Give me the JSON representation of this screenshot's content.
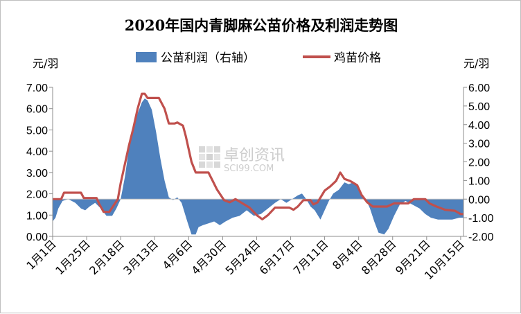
{
  "chart_data": {
    "type": "combo-area-line",
    "title": "2020年国内青脚麻公苗价格及利润走势图",
    "left_unit": "元/羽",
    "right_unit": "元/羽",
    "left_axis": {
      "min": 0,
      "max": 7,
      "step": 1,
      "tick_labels": [
        "0.00",
        "1.00",
        "2.00",
        "3.00",
        "4.00",
        "5.00",
        "6.00",
        "7.00"
      ]
    },
    "right_axis": {
      "min": -2,
      "max": 6,
      "step": 1,
      "tick_labels": [
        "-2.00",
        "-1.00",
        "0.00",
        "1.00",
        "2.00",
        "3.00",
        "4.00",
        "5.00",
        "6.00"
      ]
    },
    "x_axis": {
      "start_date": "2020-01-01",
      "end_date": "2020-10-17",
      "tick_dates": [
        "2020-01-01",
        "2020-01-25",
        "2020-02-18",
        "2020-03-13",
        "2020-04-06",
        "2020-04-30",
        "2020-05-24",
        "2020-06-17",
        "2020-07-11",
        "2020-08-04",
        "2020-08-28",
        "2020-09-21",
        "2020-10-15"
      ],
      "tick_labels": [
        "1月1日",
        "1月25日",
        "2月18日",
        "3月13日",
        "4月6日",
        "4月30日",
        "5月24日",
        "6月17日",
        "7月11日",
        "8月4日",
        "8月28日",
        "9月21日",
        "10月15日"
      ]
    },
    "legend": {
      "position": "top"
    },
    "series": [
      {
        "name": "公苗利润（右轴）",
        "type": "area",
        "axis": "right",
        "color": "#4f81bd",
        "points": [
          [
            "2020-01-01",
            -1.2
          ],
          [
            "2020-01-03",
            -1.0
          ],
          [
            "2020-01-05",
            -0.5
          ],
          [
            "2020-01-08",
            -0.1
          ],
          [
            "2020-01-12",
            0.0
          ],
          [
            "2020-01-17",
            -0.2
          ],
          [
            "2020-01-21",
            -0.5
          ],
          [
            "2020-01-24",
            -0.6
          ],
          [
            "2020-01-27",
            -0.4
          ],
          [
            "2020-01-31",
            -0.2
          ],
          [
            "2020-02-04",
            -0.5
          ],
          [
            "2020-02-08",
            -0.9
          ],
          [
            "2020-02-12",
            -0.9
          ],
          [
            "2020-02-15",
            -0.5
          ],
          [
            "2020-02-18",
            0.0
          ],
          [
            "2020-02-21",
            1.2
          ],
          [
            "2020-02-24",
            2.8
          ],
          [
            "2020-02-27",
            3.8
          ],
          [
            "2020-03-01",
            4.6
          ],
          [
            "2020-03-04",
            5.2
          ],
          [
            "2020-03-06",
            5.4
          ],
          [
            "2020-03-08",
            5.3
          ],
          [
            "2020-03-11",
            4.8
          ],
          [
            "2020-03-14",
            3.6
          ],
          [
            "2020-03-17",
            2.2
          ],
          [
            "2020-03-20",
            1.0
          ],
          [
            "2020-03-23",
            0.1
          ],
          [
            "2020-03-26",
            -0.05
          ],
          [
            "2020-03-29",
            0.1
          ],
          [
            "2020-04-01",
            -0.2
          ],
          [
            "2020-04-05",
            -1.2
          ],
          [
            "2020-04-08",
            -1.9
          ],
          [
            "2020-04-11",
            -1.9
          ],
          [
            "2020-04-13",
            -1.5
          ],
          [
            "2020-04-16",
            -1.4
          ],
          [
            "2020-04-20",
            -1.3
          ],
          [
            "2020-04-24",
            -1.2
          ],
          [
            "2020-04-28",
            -1.4
          ],
          [
            "2020-05-02",
            -1.2
          ],
          [
            "2020-05-07",
            -1.0
          ],
          [
            "2020-05-12",
            -0.9
          ],
          [
            "2020-05-17",
            -0.6
          ],
          [
            "2020-05-22",
            -0.9
          ],
          [
            "2020-05-27",
            -0.8
          ],
          [
            "2020-06-01",
            -0.5
          ],
          [
            "2020-06-06",
            -0.2
          ],
          [
            "2020-06-10",
            0.0
          ],
          [
            "2020-06-14",
            -0.2
          ],
          [
            "2020-06-18",
            0.0
          ],
          [
            "2020-06-22",
            0.2
          ],
          [
            "2020-06-25",
            0.3
          ],
          [
            "2020-06-28",
            0.0
          ],
          [
            "2020-07-01",
            -0.4
          ],
          [
            "2020-07-04",
            -0.6
          ],
          [
            "2020-07-08",
            -1.1
          ],
          [
            "2020-07-11",
            -0.6
          ],
          [
            "2020-07-14",
            -0.1
          ],
          [
            "2020-07-17",
            0.3
          ],
          [
            "2020-07-21",
            0.5
          ],
          [
            "2020-07-25",
            0.9
          ],
          [
            "2020-07-28",
            0.8
          ],
          [
            "2020-07-31",
            0.9
          ],
          [
            "2020-08-03",
            0.7
          ],
          [
            "2020-08-06",
            0.3
          ],
          [
            "2020-08-09",
            0.0
          ],
          [
            "2020-08-12",
            -0.5
          ],
          [
            "2020-08-15",
            -1.2
          ],
          [
            "2020-08-18",
            -1.8
          ],
          [
            "2020-08-22",
            -1.9
          ],
          [
            "2020-08-25",
            -1.6
          ],
          [
            "2020-08-29",
            -0.9
          ],
          [
            "2020-09-02",
            -0.3
          ],
          [
            "2020-09-06",
            -0.1
          ],
          [
            "2020-09-11",
            -0.3
          ],
          [
            "2020-09-16",
            -0.5
          ],
          [
            "2020-09-20",
            -0.8
          ],
          [
            "2020-09-24",
            -1.0
          ],
          [
            "2020-09-29",
            -1.1
          ],
          [
            "2020-10-04",
            -1.1
          ],
          [
            "2020-10-09",
            -1.1
          ],
          [
            "2020-10-14",
            -1.0
          ],
          [
            "2020-10-17",
            -1.0
          ]
        ]
      },
      {
        "name": "鸡苗价格",
        "type": "line",
        "axis": "left",
        "color": "#c0504d",
        "points": [
          [
            "2020-01-01",
            1.75
          ],
          [
            "2020-01-07",
            1.75
          ],
          [
            "2020-01-09",
            2.05
          ],
          [
            "2020-01-21",
            2.05
          ],
          [
            "2020-01-23",
            1.8
          ],
          [
            "2020-02-01",
            1.8
          ],
          [
            "2020-02-03",
            1.5
          ],
          [
            "2020-02-06",
            1.15
          ],
          [
            "2020-02-10",
            1.15
          ],
          [
            "2020-02-13",
            1.45
          ],
          [
            "2020-02-16",
            1.75
          ],
          [
            "2020-02-18",
            2.5
          ],
          [
            "2020-02-21",
            3.4
          ],
          [
            "2020-02-24",
            4.3
          ],
          [
            "2020-02-27",
            5.1
          ],
          [
            "2020-03-01",
            6.0
          ],
          [
            "2020-03-04",
            6.7
          ],
          [
            "2020-03-06",
            6.7
          ],
          [
            "2020-03-08",
            6.5
          ],
          [
            "2020-03-10",
            6.5
          ],
          [
            "2020-03-13",
            6.5
          ],
          [
            "2020-03-16",
            6.5
          ],
          [
            "2020-03-20",
            6.0
          ],
          [
            "2020-03-23",
            5.3
          ],
          [
            "2020-03-27",
            5.3
          ],
          [
            "2020-03-29",
            5.35
          ],
          [
            "2020-04-02",
            5.2
          ],
          [
            "2020-04-04",
            4.7
          ],
          [
            "2020-04-08",
            3.5
          ],
          [
            "2020-04-11",
            3.0
          ],
          [
            "2020-04-20",
            3.0
          ],
          [
            "2020-04-23",
            2.6
          ],
          [
            "2020-04-26",
            2.2
          ],
          [
            "2020-05-01",
            1.7
          ],
          [
            "2020-05-05",
            1.6
          ],
          [
            "2020-05-09",
            1.75
          ],
          [
            "2020-05-14",
            1.55
          ],
          [
            "2020-05-19",
            1.35
          ],
          [
            "2020-05-24",
            1.0
          ],
          [
            "2020-05-28",
            0.8
          ],
          [
            "2020-06-01",
            1.0
          ],
          [
            "2020-06-06",
            1.35
          ],
          [
            "2020-06-11",
            1.35
          ],
          [
            "2020-06-16",
            1.35
          ],
          [
            "2020-06-19",
            1.25
          ],
          [
            "2020-06-22",
            1.4
          ],
          [
            "2020-06-26",
            1.7
          ],
          [
            "2020-07-01",
            1.7
          ],
          [
            "2020-07-03",
            1.5
          ],
          [
            "2020-07-06",
            1.6
          ],
          [
            "2020-07-11",
            2.15
          ],
          [
            "2020-07-15",
            2.35
          ],
          [
            "2020-07-19",
            2.6
          ],
          [
            "2020-07-22",
            3.0
          ],
          [
            "2020-07-25",
            2.7
          ],
          [
            "2020-07-29",
            2.6
          ],
          [
            "2020-08-03",
            2.4
          ],
          [
            "2020-08-06",
            1.95
          ],
          [
            "2020-08-10",
            1.6
          ],
          [
            "2020-08-14",
            1.4
          ],
          [
            "2020-08-18",
            1.4
          ],
          [
            "2020-08-24",
            1.4
          ],
          [
            "2020-08-29",
            1.55
          ],
          [
            "2020-09-03",
            1.55
          ],
          [
            "2020-09-08",
            1.55
          ],
          [
            "2020-09-12",
            1.75
          ],
          [
            "2020-09-20",
            1.75
          ],
          [
            "2020-09-23",
            1.55
          ],
          [
            "2020-09-28",
            1.4
          ],
          [
            "2020-10-04",
            1.25
          ],
          [
            "2020-10-11",
            1.2
          ],
          [
            "2020-10-15",
            1.05
          ],
          [
            "2020-10-17",
            1.05
          ]
        ]
      }
    ],
    "watermark": {
      "main": "卓创资讯",
      "sub": "SCI99.COM"
    }
  }
}
